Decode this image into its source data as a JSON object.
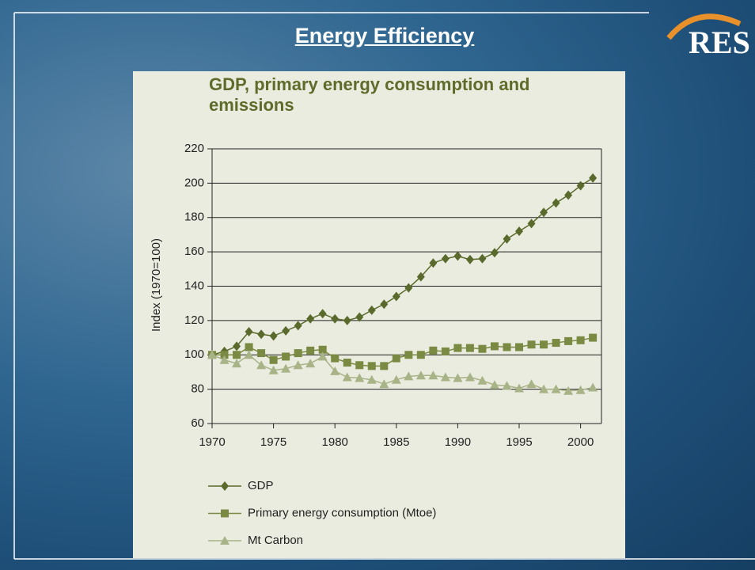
{
  "slide_title": "Energy Efficiency",
  "logo": "RES",
  "chart_data": {
    "type": "line",
    "title": "GDP, primary energy consumption and emissions",
    "y_label": "Index (1970=100)",
    "x": [
      1970,
      1971,
      1972,
      1973,
      1974,
      1975,
      1976,
      1977,
      1978,
      1979,
      1980,
      1981,
      1982,
      1983,
      1984,
      1985,
      1986,
      1987,
      1988,
      1989,
      1990,
      1991,
      1992,
      1993,
      1994,
      1995,
      1996,
      1997,
      1998,
      1999,
      2000,
      2001
    ],
    "series": [
      {
        "name": "GDP",
        "color": "#5a6a2c",
        "marker": "diamond",
        "values": [
          100,
          102,
          105,
          113.5,
          112,
          111,
          114,
          117,
          121,
          124,
          121,
          120,
          122,
          126,
          129.5,
          134,
          139,
          145.5,
          153.5,
          156,
          157.5,
          155.5,
          156,
          159.5,
          167.5,
          172,
          176.5,
          183,
          188.5,
          193,
          198.5,
          203
        ]
      },
      {
        "name": "Primary energy consumption (Mtoe)",
        "color": "#7a8a43",
        "marker": "square",
        "values": [
          100,
          100,
          100,
          104.5,
          101,
          97,
          99,
          101,
          102.5,
          103,
          98,
          95.5,
          94,
          93.5,
          93.5,
          98,
          100,
          100,
          102.5,
          102,
          104,
          104,
          103.5,
          105,
          104.5,
          104.5,
          106,
          106,
          107,
          108,
          108.5,
          110
        ]
      },
      {
        "name": "Mt Carbon",
        "color": "#a8b387",
        "marker": "triangle",
        "values": [
          100,
          97,
          95,
          100,
          94,
          91,
          92,
          94,
          95,
          99,
          90.5,
          87,
          86.5,
          85.5,
          83,
          85.5,
          87.5,
          88,
          88,
          87,
          86.5,
          87,
          85,
          82.5,
          82,
          80.5,
          83,
          80,
          80,
          79,
          79.5,
          81
        ]
      }
    ],
    "xlim": [
      1970,
      2001.7
    ],
    "ylim": [
      60,
      220
    ],
    "xticks": [
      1970,
      1975,
      1980,
      1985,
      1990,
      1995,
      2000
    ],
    "yticks": [
      60,
      80,
      100,
      120,
      140,
      160,
      180,
      200,
      220
    ],
    "grid": true
  }
}
